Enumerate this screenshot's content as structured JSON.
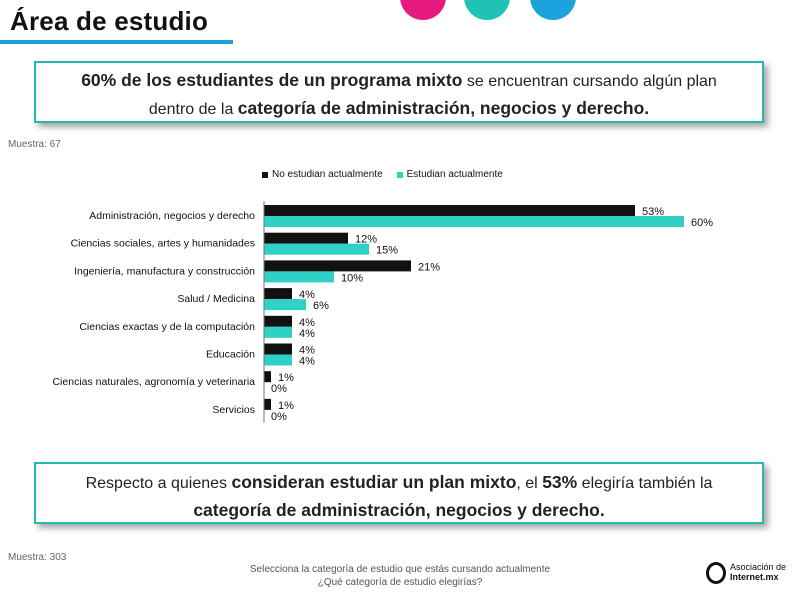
{
  "header": {
    "title": "Área de estudio"
  },
  "callout_top": {
    "bold1": "60% de los estudiantes de un programa mixto",
    "normal1": " se encuentran cursando algún plan",
    "normal2": "dentro de la ",
    "bold2": "categoría de administración, negocios y derecho."
  },
  "sample_top": "Muestra: 67",
  "callout_bottom": {
    "normal1": "Respecto a quienes ",
    "bold1": "consideran estudiar un plan mixto",
    "normal2": ", el ",
    "bold2": "53%",
    "normal3": " elegiría también la",
    "bold3": "categoría de administración, negocios y derecho."
  },
  "sample_bottom": "Muestra: 303",
  "footer": {
    "q1": "Selecciona la categoría de estudio que estás cursando actualmente",
    "q2": "¿Qué categoría de estudio elegirías?"
  },
  "logo": {
    "line1": "Asociación de",
    "line2": "Internet.mx"
  },
  "colors": {
    "black": "#111111",
    "teal": "#2fd0c6",
    "accent": "#23b8b0"
  },
  "chart_data": {
    "type": "bar",
    "orientation": "horizontal",
    "categories": [
      "Administración, negocios y derecho",
      "Ciencias sociales, artes y humanidades",
      "Ingeniería, manufactura y construcción",
      "Salud / Medicina",
      "Ciencias exactas y de la computación",
      "Educación",
      "Ciencias naturales, agronomía y veterinaria",
      "Servicios"
    ],
    "series": [
      {
        "name": "No estudian actualmente",
        "color": "#111111",
        "values": [
          53,
          12,
          21,
          4,
          4,
          4,
          1,
          1
        ],
        "labels": [
          "53%",
          "12%",
          "21%",
          "4%",
          "4%",
          "4%",
          "1%",
          "1%"
        ]
      },
      {
        "name": "Estudian actualmente",
        "color": "#2fd0c6",
        "values": [
          60,
          15,
          10,
          6,
          4,
          4,
          0,
          0
        ],
        "labels": [
          "60%",
          "15%",
          "10%",
          "6%",
          "4%",
          "4%",
          "0%",
          "0%"
        ]
      }
    ],
    "xlim": [
      0,
      60
    ],
    "legend": "top"
  }
}
